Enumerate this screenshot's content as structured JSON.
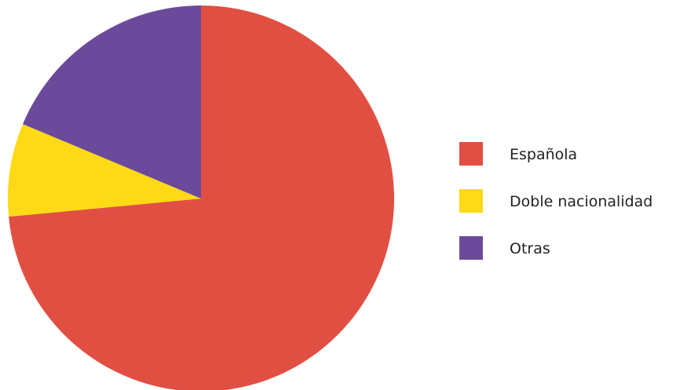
{
  "chart_data": {
    "type": "pie",
    "title": "",
    "start_angle_deg": 0,
    "direction": "clockwise",
    "legend_placement": "right",
    "slices": [
      {
        "label": "Española",
        "value": 73.5,
        "color": "#E14F42"
      },
      {
        "label": "Doble nacionalidad",
        "value": 7.8,
        "color": "#FDD916"
      },
      {
        "label": "Otras",
        "value": 18.7,
        "color": "#6C4A9B"
      }
    ]
  }
}
